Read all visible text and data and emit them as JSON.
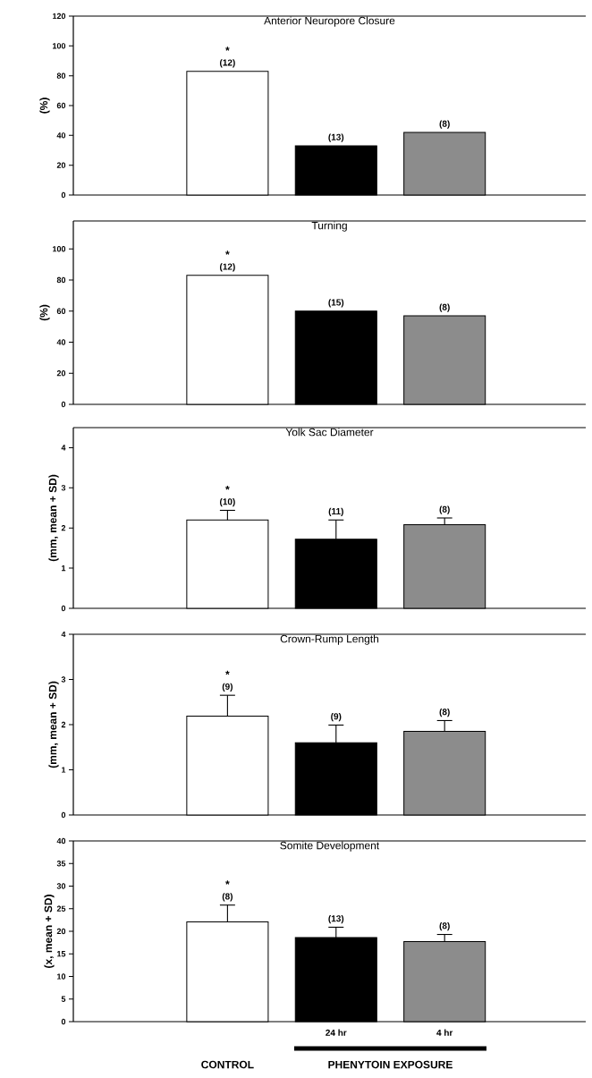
{
  "chart_data": [
    {
      "type": "bar",
      "title": "Anterior Neuropore Closure",
      "ylabel": "(%)",
      "categories": [
        null,
        null,
        null,
        null,
        null
      ],
      "values": [
        null,
        83,
        33,
        42,
        null
      ],
      "colors": [
        "#ffffff",
        "#ffffff",
        "#000000",
        "#8c8c8c",
        "#ffffff"
      ],
      "ylim": [
        0,
        120
      ],
      "yticks": [
        0,
        20,
        40,
        60,
        80,
        100,
        120
      ],
      "tick_labels": "y",
      "annotations": [
        "*",
        "(12)",
        "(13)",
        "(8)"
      ]
    },
    {
      "type": "bar",
      "title": "Turning",
      "ylabel": "(%)",
      "categories": [
        null,
        null,
        null,
        null,
        null
      ],
      "values": [
        null,
        83,
        60,
        57,
        null
      ],
      "colors": [
        "#ffffff",
        "#ffffff",
        "#000000",
        "#8c8c8c",
        "#ffffff"
      ],
      "ylim": [
        0,
        118
      ],
      "yticks": [
        0,
        20,
        40,
        60,
        80,
        100
      ],
      "tick_labels": "y",
      "annotations": [
        "*",
        "(12)",
        "(15)",
        "(8)"
      ]
    },
    {
      "type": "bar",
      "title": "Yolk Sac Diameter",
      "ylabel": "(mm, mean + SD)",
      "categories": [
        null,
        null,
        null,
        null,
        null
      ],
      "values": [
        null,
        2.2,
        1.72,
        2.08,
        null
      ],
      "colors": [
        "#ffffff",
        "#ffffff",
        "#000000",
        "#8c8c8c",
        "#ffffff"
      ],
      "errors": [
        null,
        [
          2.2,
          2.44
        ],
        [
          1.72,
          2.2
        ],
        [
          2.08,
          2.25
        ],
        null
      ],
      "ylim": [
        0,
        4.5
      ],
      "yticks": [
        0,
        1,
        2,
        3,
        4
      ],
      "tick_labels": "y",
      "annotations": [
        "*",
        "(10)",
        "(11)",
        "(8)"
      ]
    },
    {
      "type": "bar",
      "title": "Crown-Rump Length",
      "ylabel": "(mm, mean + SD)",
      "categories": [
        null,
        null,
        null,
        null,
        null
      ],
      "values": [
        null,
        2.19,
        1.6,
        1.85,
        null
      ],
      "colors": [
        "#ffffff",
        "#ffffff",
        "#000000",
        "#8c8c8c",
        "#ffffff"
      ],
      "errors": [
        null,
        [
          2.19,
          2.65
        ],
        [
          1.6,
          1.99
        ],
        [
          1.85,
          2.09
        ],
        null
      ],
      "ylim": [
        0,
        4
      ],
      "yticks": [
        0,
        1,
        2,
        3,
        4
      ],
      "tick_labels": "y",
      "annotations": [
        "*",
        "(9)",
        "(9)",
        "(8)"
      ]
    },
    {
      "type": "bar",
      "title": "Somite Development",
      "ylabel": "(x, mean + SD)",
      "categories": [
        null,
        null,
        "24 hr",
        "4 hr",
        null
      ],
      "values": [
        null,
        22.1,
        18.6,
        17.7,
        null
      ],
      "colors": [
        "#ffffff",
        "#ffffff",
        "#000000",
        "#8c8c8c",
        "#ffffff"
      ],
      "errors": [
        null,
        [
          22.1,
          25.8
        ],
        [
          18.6,
          20.9
        ],
        [
          17.7,
          19.3
        ],
        null
      ],
      "ylim": [
        0,
        40
      ],
      "yticks": [
        0,
        5,
        10,
        15,
        20,
        25,
        30,
        35,
        40
      ],
      "annotations": [
        "*",
        "(8)",
        "(13)",
        "(8)",
        "CONTROL",
        "PHENYTOIN EXPOSURE"
      ]
    }
  ]
}
